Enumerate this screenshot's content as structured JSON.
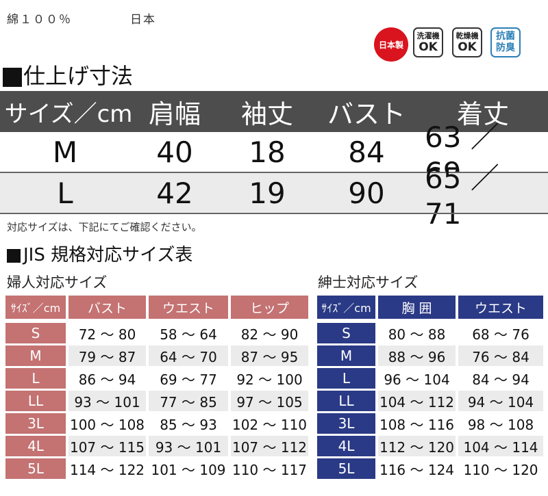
{
  "top": {
    "material": "綿１００％",
    "origin": "日本"
  },
  "badges": {
    "made_in_japan": "日本製",
    "washing_top": "洗濯機",
    "washing_bottom": "OK",
    "drying_top": "乾燥機",
    "drying_bottom": "OK",
    "antibac_top": "抗菌",
    "antibac_bottom": "防臭"
  },
  "colors": {
    "main_header": "#4d4d4d",
    "stripe": "#ebebeb",
    "women": "#c47272",
    "men": "#2a3a86",
    "red_badge": "#d9141e",
    "blue_badge": "#2a7fb8"
  },
  "finished": {
    "title": "仕上げ寸法",
    "headers": [
      "サイズ／cm",
      "肩幅",
      "袖丈",
      "バスト",
      "着丈"
    ],
    "rows": [
      [
        "M",
        "40",
        "18",
        "84",
        "63 ／ 69"
      ],
      [
        "L",
        "42",
        "19",
        "90",
        "65 ／ 71"
      ]
    ]
  },
  "note": "対応サイズは、下記にてご確認ください。",
  "jis_title": "JIS 規格対応サイズ表",
  "women": {
    "title": "婦人対応サイズ",
    "headers": [
      "ｻｲｽﾞ／cm",
      "バスト",
      "ウエスト",
      "ヒップ"
    ],
    "rows": [
      [
        "S",
        "72 ～ 80",
        "58 ～ 64",
        "82 ～ 90"
      ],
      [
        "M",
        "79 ～ 87",
        "64 ～ 70",
        "87 ～ 95"
      ],
      [
        "L",
        "86 ～ 94",
        "69 ～ 77",
        "92 ～ 100"
      ],
      [
        "LL",
        "93 ～ 101",
        "77 ～ 85",
        "97 ～ 105"
      ],
      [
        "3L",
        "100 ～ 108",
        "85 ～ 93",
        "102 ～ 110"
      ],
      [
        "4L",
        "107 ～ 115",
        "93 ～ 101",
        "107 ～ 112"
      ],
      [
        "5L",
        "114 ～ 122",
        "101 ～ 109",
        "110 ～ 117"
      ]
    ]
  },
  "men": {
    "title": "紳士対応サイズ",
    "headers": [
      "ｻｲｽﾞ／cm",
      "胸 囲",
      "ウエスト"
    ],
    "rows": [
      [
        "S",
        "80 ～ 88",
        "68 ～ 76"
      ],
      [
        "M",
        "88 ～ 96",
        "76 ～ 84"
      ],
      [
        "L",
        "96 ～ 104",
        "84 ～ 94"
      ],
      [
        "LL",
        "104 ～ 112",
        "94 ～ 104"
      ],
      [
        "3L",
        "108 ～ 116",
        "98 ～ 108"
      ],
      [
        "4L",
        "112 ～ 120",
        "104 ～ 114"
      ],
      [
        "5L",
        "116 ～ 124",
        "110 ～ 120"
      ]
    ]
  }
}
